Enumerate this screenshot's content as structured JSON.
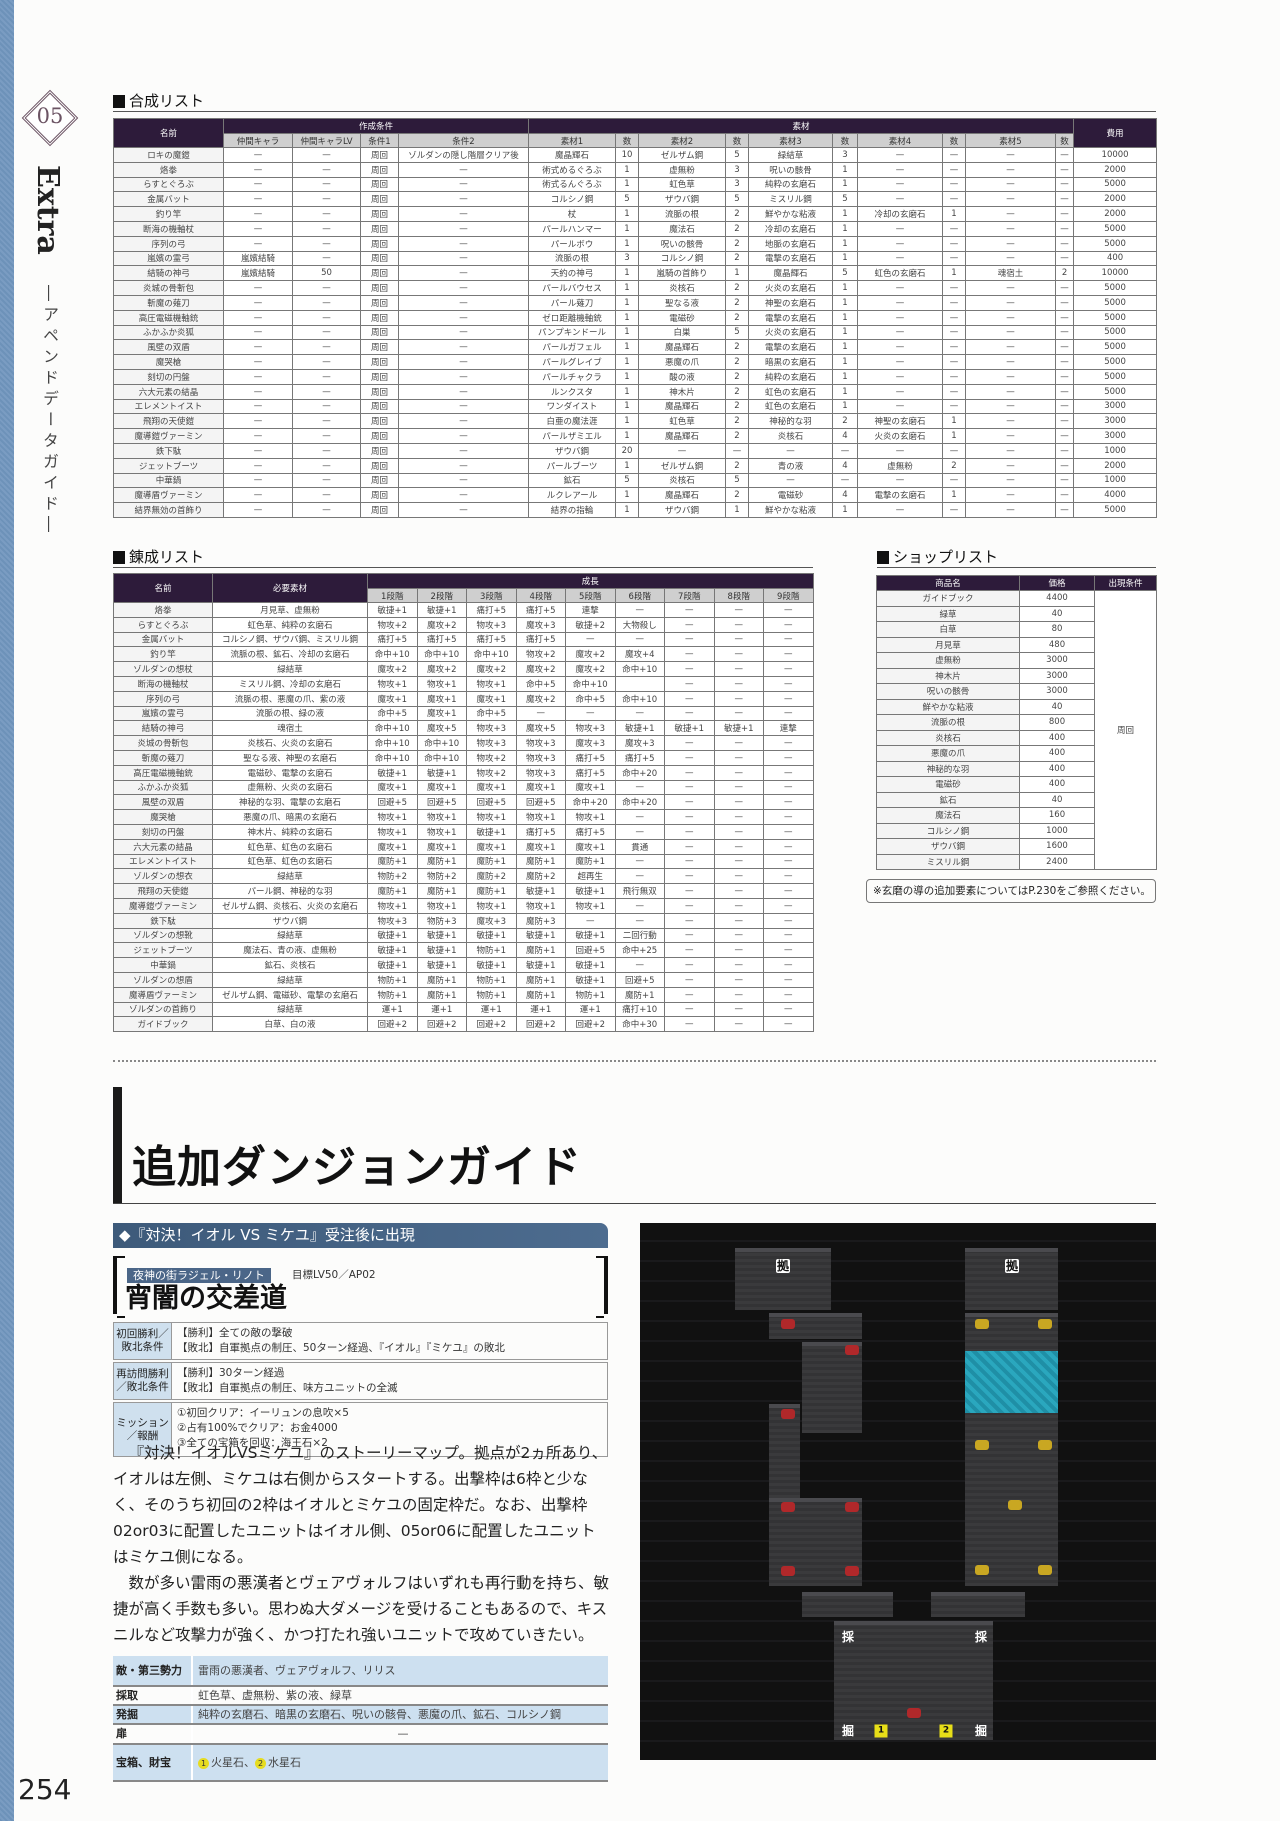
{
  "sidebar": {
    "chapter_number": "05",
    "chapter_title": "Extra",
    "subtitle": "―アペンドデータガイド―",
    "page_number": "254"
  },
  "synthesis": {
    "title": "合成リスト",
    "headers": {
      "name": "名前",
      "conditions": "作成条件",
      "materials": "素材",
      "cost": "費用"
    },
    "columns": [
      "仲間キャラ",
      "仲間キャラLV",
      "条件1",
      "条件2",
      "素材1",
      "数",
      "素材2",
      "数",
      "素材3",
      "数",
      "素材4",
      "数",
      "素材5",
      "数"
    ],
    "rows": [
      [
        "ロキの魔鎧",
        "—",
        "—",
        "周回",
        "ゾルダンの隠し階層クリア後",
        "魔晶輝石",
        "10",
        "ゼルザム鋼",
        "5",
        "緑結草",
        "3",
        "—",
        "—",
        "—",
        "—",
        "10000"
      ],
      [
        "烙拳",
        "—",
        "—",
        "周回",
        "—",
        "術式めるぐろぶ",
        "1",
        "虚無粉",
        "3",
        "呪いの骸骨",
        "1",
        "—",
        "—",
        "—",
        "—",
        "2000"
      ],
      [
        "らすとぐろぶ",
        "—",
        "—",
        "周回",
        "—",
        "術式るんぐろぶ",
        "1",
        "虹色草",
        "3",
        "純粋の玄磨石",
        "1",
        "—",
        "—",
        "—",
        "—",
        "5000"
      ],
      [
        "金属バット",
        "—",
        "—",
        "周回",
        "—",
        "コルシノ鋼",
        "5",
        "ザウバ鋼",
        "5",
        "ミスリル鋼",
        "5",
        "—",
        "—",
        "—",
        "—",
        "2000"
      ],
      [
        "釣り竿",
        "—",
        "—",
        "周回",
        "—",
        "杖",
        "1",
        "流脈の根",
        "2",
        "鮮やかな粘液",
        "1",
        "冷却の玄磨石",
        "1",
        "—",
        "—",
        "2000"
      ],
      [
        "断海の機軸杖",
        "—",
        "—",
        "周回",
        "—",
        "パールハンマー",
        "1",
        "魔法石",
        "2",
        "冷却の玄磨石",
        "1",
        "—",
        "—",
        "—",
        "—",
        "5000"
      ],
      [
        "序列の弓",
        "—",
        "—",
        "周回",
        "—",
        "パールボウ",
        "1",
        "呪いの骸骨",
        "2",
        "地脈の玄磨石",
        "1",
        "—",
        "—",
        "—",
        "—",
        "5000"
      ],
      [
        "嵐嬪の霊弓",
        "嵐嬪結騎",
        "—",
        "周回",
        "—",
        "流脈の根",
        "3",
        "コルシノ鋼",
        "2",
        "電撃の玄磨石",
        "1",
        "—",
        "—",
        "—",
        "—",
        "400"
      ],
      [
        "結騎の神弓",
        "嵐嬪結騎",
        "50",
        "周回",
        "—",
        "天約の神弓",
        "1",
        "嵐騎の首飾り",
        "1",
        "魔晶輝石",
        "5",
        "虹色の玄磨石",
        "1",
        "魂宿土",
        "2",
        "10000"
      ],
      [
        "炎城の骨斬包",
        "—",
        "—",
        "周回",
        "—",
        "パールバウセス",
        "1",
        "炎核石",
        "2",
        "火炎の玄磨石",
        "1",
        "—",
        "—",
        "—",
        "—",
        "5000"
      ],
      [
        "斬魔の薙刀",
        "—",
        "—",
        "周回",
        "—",
        "パール薙刀",
        "1",
        "聖なる液",
        "2",
        "神聖の玄磨石",
        "1",
        "—",
        "—",
        "—",
        "—",
        "5000"
      ],
      [
        "高圧電磁機軸銃",
        "—",
        "—",
        "周回",
        "—",
        "ゼロ距離機軸銃",
        "1",
        "電磁砂",
        "2",
        "電撃の玄磨石",
        "1",
        "—",
        "—",
        "—",
        "—",
        "5000"
      ],
      [
        "ふかふか炎狐",
        "—",
        "—",
        "周回",
        "—",
        "パンプキンドール",
        "1",
        "白巣",
        "5",
        "火炎の玄磨石",
        "1",
        "—",
        "—",
        "—",
        "—",
        "5000"
      ],
      [
        "風壁の双盾",
        "—",
        "—",
        "周回",
        "—",
        "パールガフェル",
        "1",
        "魔晶輝石",
        "2",
        "電撃の玄磨石",
        "1",
        "—",
        "—",
        "—",
        "—",
        "5000"
      ],
      [
        "魔哭槍",
        "—",
        "—",
        "周回",
        "—",
        "パールグレイブ",
        "1",
        "悪魔の爪",
        "2",
        "暗黒の玄磨石",
        "1",
        "—",
        "—",
        "—",
        "—",
        "5000"
      ],
      [
        "刻切の円盤",
        "—",
        "—",
        "周回",
        "—",
        "パールチャクラ",
        "1",
        "酸の液",
        "2",
        "純粋の玄磨石",
        "1",
        "—",
        "—",
        "—",
        "—",
        "5000"
      ],
      [
        "六大元素の結晶",
        "—",
        "—",
        "周回",
        "—",
        "ルンクスタ",
        "1",
        "神木片",
        "2",
        "虹色の玄磨石",
        "1",
        "—",
        "—",
        "—",
        "—",
        "5000"
      ],
      [
        "エレメントイスト",
        "—",
        "—",
        "周回",
        "—",
        "ワンダイスト",
        "1",
        "魔晶輝石",
        "2",
        "虹色の玄磨石",
        "1",
        "—",
        "—",
        "—",
        "—",
        "3000"
      ],
      [
        "飛翔の天使鎧",
        "—",
        "—",
        "周回",
        "—",
        "白亜の魔法涯",
        "1",
        "虹色草",
        "2",
        "神秘的な羽",
        "2",
        "神聖の玄磨石",
        "1",
        "—",
        "—",
        "3000"
      ],
      [
        "魔導鎧ヴァーミン",
        "—",
        "—",
        "周回",
        "—",
        "パールザミエル",
        "1",
        "魔晶輝石",
        "2",
        "炎核石",
        "4",
        "火炎の玄磨石",
        "1",
        "—",
        "—",
        "3000"
      ],
      [
        "鉄下駄",
        "—",
        "—",
        "周回",
        "—",
        "ザウバ鋼",
        "20",
        "—",
        "—",
        "—",
        "—",
        "—",
        "—",
        "—",
        "—",
        "1000"
      ],
      [
        "ジェットブーツ",
        "—",
        "—",
        "周回",
        "—",
        "パールブーツ",
        "1",
        "ゼルザム鋼",
        "2",
        "青の液",
        "4",
        "虚無粉",
        "2",
        "—",
        "—",
        "2000"
      ],
      [
        "中華鍋",
        "—",
        "—",
        "周回",
        "—",
        "鉱石",
        "5",
        "炎核石",
        "5",
        "—",
        "—",
        "—",
        "—",
        "—",
        "—",
        "1000"
      ],
      [
        "魔導盾ヴァーミン",
        "—",
        "—",
        "周回",
        "—",
        "ルクレアール",
        "1",
        "魔晶輝石",
        "2",
        "電磁砂",
        "4",
        "電撃の玄磨石",
        "1",
        "—",
        "—",
        "4000"
      ],
      [
        "結界無効の首飾り",
        "—",
        "—",
        "周回",
        "—",
        "結界の指輪",
        "1",
        "ザウバ鋼",
        "1",
        "鮮やかな粘液",
        "1",
        "—",
        "—",
        "—",
        "—",
        "5000"
      ]
    ]
  },
  "refinement": {
    "title": "錬成リスト",
    "headers": {
      "name": "名前",
      "materials": "必要素材",
      "growth": "成長"
    },
    "stages": [
      "1段階",
      "2段階",
      "3段階",
      "4段階",
      "5段階",
      "6段階",
      "7段階",
      "8段階",
      "9段階"
    ],
    "rows": [
      [
        "烙拳",
        "月見草、虚無粉",
        "敏捷+1",
        "敏捷+1",
        "痛打+5",
        "痛打+5",
        "連撃",
        "—",
        "—",
        "—",
        "—"
      ],
      [
        "らすとぐろぶ",
        "虹色草、純粋の玄磨石",
        "物攻+2",
        "魔攻+2",
        "物攻+3",
        "魔攻+3",
        "敏捷+2",
        "大物殺し",
        "—",
        "—",
        "—"
      ],
      [
        "金属バット",
        "コルシノ鋼、ザウバ鋼、ミスリル鋼",
        "痛打+5",
        "痛打+5",
        "痛打+5",
        "痛打+5",
        "—",
        "—",
        "—",
        "—",
        "—"
      ],
      [
        "釣り竿",
        "流脈の根、鉱石、冷却の玄磨石",
        "命中+10",
        "命中+10",
        "命中+10",
        "物攻+2",
        "魔攻+2",
        "魔攻+4",
        "—",
        "—",
        "—"
      ],
      [
        "ゾルダンの想杖",
        "緑結草",
        "魔攻+2",
        "魔攻+2",
        "魔攻+2",
        "魔攻+2",
        "魔攻+2",
        "命中+10",
        "—",
        "—",
        "—"
      ],
      [
        "断海の機軸杖",
        "ミスリル鋼、冷却の玄磨石",
        "物攻+1",
        "物攻+1",
        "物攻+1",
        "命中+5",
        "命中+10",
        "",
        "—",
        "—",
        "—"
      ],
      [
        "序列の弓",
        "流脈の根、悪魔の爪、紫の液",
        "魔攻+1",
        "魔攻+1",
        "魔攻+1",
        "魔攻+2",
        "命中+5",
        "命中+10",
        "—",
        "—",
        "—"
      ],
      [
        "嵐嬪の霊弓",
        "流脈の根、緑の液",
        "命中+5",
        "魔攻+1",
        "命中+5",
        "—",
        "—",
        "—",
        "—",
        "—",
        "—"
      ],
      [
        "結騎の神弓",
        "魂宿土",
        "命中+10",
        "魔攻+5",
        "物攻+3",
        "魔攻+5",
        "物攻+3",
        "敏捷+1",
        "敏捷+1",
        "敏捷+1",
        "連撃"
      ],
      [
        "炎城の骨斬包",
        "炎核石、火炎の玄磨石",
        "命中+10",
        "命中+10",
        "物攻+3",
        "物攻+3",
        "魔攻+3",
        "魔攻+3",
        "—",
        "—",
        "—"
      ],
      [
        "斬魔の薙刀",
        "聖なる液、神聖の玄磨石",
        "命中+10",
        "命中+10",
        "物攻+2",
        "物攻+3",
        "痛打+5",
        "痛打+5",
        "—",
        "—",
        "—"
      ],
      [
        "高圧電磁機軸銃",
        "電磁砂、電撃の玄磨石",
        "敏捷+1",
        "敏捷+1",
        "物攻+2",
        "物攻+3",
        "痛打+5",
        "命中+20",
        "—",
        "—",
        "—"
      ],
      [
        "ふかふか炎狐",
        "虚無粉、火炎の玄磨石",
        "魔攻+1",
        "魔攻+1",
        "魔攻+1",
        "魔攻+1",
        "魔攻+1",
        "—",
        "—",
        "—",
        "—"
      ],
      [
        "風壁の双盾",
        "神秘的な羽、電撃の玄磨石",
        "回避+5",
        "回避+5",
        "回避+5",
        "回避+5",
        "命中+20",
        "命中+20",
        "—",
        "—",
        "—"
      ],
      [
        "魔哭槍",
        "悪魔の爪、暗黒の玄磨石",
        "物攻+1",
        "物攻+1",
        "物攻+1",
        "物攻+1",
        "物攻+1",
        "—",
        "—",
        "—",
        "—"
      ],
      [
        "刻切の円盤",
        "神木片、純粋の玄磨石",
        "物攻+1",
        "物攻+1",
        "敏捷+1",
        "痛打+5",
        "痛打+5",
        "—",
        "—",
        "—",
        "—"
      ],
      [
        "六大元素の結晶",
        "虹色草、虹色の玄磨石",
        "魔攻+1",
        "魔攻+1",
        "魔攻+1",
        "魔攻+1",
        "魔攻+1",
        "貫通",
        "—",
        "—",
        "—"
      ],
      [
        "エレメントイスト",
        "虹色草、虹色の玄磨石",
        "魔防+1",
        "魔防+1",
        "魔防+1",
        "魔防+1",
        "魔防+1",
        "—",
        "—",
        "—",
        "—"
      ],
      [
        "ゾルダンの想衣",
        "緑結草",
        "物防+2",
        "物防+2",
        "魔防+2",
        "魔防+2",
        "超再生",
        "—",
        "—",
        "—",
        "—"
      ],
      [
        "飛翔の天使鎧",
        "パール鋼、神秘的な羽",
        "魔防+1",
        "魔防+1",
        "魔防+1",
        "敏捷+1",
        "敏捷+1",
        "飛行無双",
        "—",
        "—",
        "—"
      ],
      [
        "魔導鎧ヴァーミン",
        "ゼルザム鋼、炎核石、火炎の玄磨石",
        "物攻+1",
        "物攻+1",
        "物攻+1",
        "物攻+1",
        "物攻+1",
        "—",
        "—",
        "—",
        "—"
      ],
      [
        "鉄下駄",
        "ザウバ鋼",
        "物攻+3",
        "物防+3",
        "魔攻+3",
        "魔防+3",
        "—",
        "—",
        "—",
        "—",
        "—"
      ],
      [
        "ゾルダンの想靴",
        "緑結草",
        "敏捷+1",
        "敏捷+1",
        "敏捷+1",
        "敏捷+1",
        "敏捷+1",
        "二回行動",
        "—",
        "—",
        "—"
      ],
      [
        "ジェットブーツ",
        "魔法石、青の液、虚無粉",
        "敏捷+1",
        "敏捷+1",
        "物防+1",
        "魔防+1",
        "回避+5",
        "命中+25",
        "—",
        "—",
        "—"
      ],
      [
        "中華鍋",
        "鉱石、炎核石",
        "敏捷+1",
        "敏捷+1",
        "敏捷+1",
        "敏捷+1",
        "敏捷+1",
        "—",
        "—",
        "—",
        "—"
      ],
      [
        "ゾルダンの想盾",
        "緑結草",
        "物防+1",
        "魔防+1",
        "物防+1",
        "魔防+1",
        "敏捷+1",
        "回避+5",
        "—",
        "—",
        "—"
      ],
      [
        "魔導盾ヴァーミン",
        "ゼルザム鋼、電磁砂、電撃の玄磨石",
        "物防+1",
        "魔防+1",
        "物防+1",
        "魔防+1",
        "物防+1",
        "魔防+1",
        "—",
        "—",
        "—"
      ],
      [
        "ゾルダンの首飾り",
        "緑結草",
        "運+1",
        "運+1",
        "運+1",
        "運+1",
        "運+1",
        "痛打+10",
        "—",
        "—",
        "—"
      ],
      [
        "ガイドブック",
        "白草、白の液",
        "回避+2",
        "回避+2",
        "回避+2",
        "回避+2",
        "回避+2",
        "命中+30",
        "—",
        "—",
        "—"
      ]
    ]
  },
  "shop": {
    "title": "ショップリスト",
    "headers": [
      "商品名",
      "価格",
      "出現条件"
    ],
    "condition": "周回",
    "rows": [
      [
        "ガイドブック",
        "4400"
      ],
      [
        "緑草",
        "40"
      ],
      [
        "白草",
        "80"
      ],
      [
        "月見草",
        "480"
      ],
      [
        "虚無粉",
        "3000"
      ],
      [
        "神木片",
        "3000"
      ],
      [
        "呪いの骸骨",
        "3000"
      ],
      [
        "鮮やかな粘液",
        "40"
      ],
      [
        "流脈の根",
        "800"
      ],
      [
        "炎核石",
        "400"
      ],
      [
        "悪魔の爪",
        "400"
      ],
      [
        "神秘的な羽",
        "400"
      ],
      [
        "電磁砂",
        "400"
      ],
      [
        "鉱石",
        "40"
      ],
      [
        "魔法石",
        "160"
      ],
      [
        "コルシノ鋼",
        "1000"
      ],
      [
        "ザウバ鋼",
        "1600"
      ],
      [
        "ミスリル鋼",
        "2400"
      ]
    ],
    "note": "※玄磨の導の追加要素についてはP.230をご参照ください。"
  },
  "dungeon": {
    "section_title": "追加ダンジョンガイド",
    "banner": "◆『対決！イオル VS ミケユ』受注後に出現",
    "area": "夜神の街ラジェル・リノト",
    "goal": "目標LV50／AP02",
    "stage_name": "宵闇の交差道",
    "conditions": [
      {
        "label": "初回勝利／敗北条件",
        "lines": [
          "【勝利】全ての敵の撃破",
          "【敗北】自軍拠点の制圧、50ターン経過、『イオル』『ミケユ』の敗北"
        ]
      },
      {
        "label": "再訪問勝利／敗北条件",
        "lines": [
          "【勝利】30ターン経過",
          "【敗北】自軍拠点の制圧、味方ユニットの全滅"
        ]
      },
      {
        "label": "ミッション／報酬",
        "lines": [
          "①初回クリア：イーリュンの息吹×5",
          "②占有100%でクリア：お金4000",
          "③全ての宝箱を回収：海王石×2"
        ]
      }
    ],
    "paragraphs": [
      "『対決！イオルVSミケユ』のストーリーマップ。拠点が2ヵ所あり、イオルは左側、ミケユは右側からスタートする。出撃枠は6枠と少なく、そのうち初回の2枠はイオルとミケユの固定枠だ。なお、出撃枠02or03に配置したユニットはイオル側、05or06に配置したユニットはミケユ側になる。",
      "数が多い雷雨の悪漢者とヴェアヴォルフはいずれも再行動を持ち、敏捷が高く手数も多い。思わぬ大ダメージを受けることもあるので、キスニルなど攻撃力が強く、かつ打たれ強いユニットで攻めていきたい。"
    ],
    "info": [
      {
        "label": "敵・第三勢力",
        "value": "雷雨の悪漢者、ヴェアヴォルフ、リリス"
      },
      {
        "label": "採取",
        "value": "虹色草、虚無粉、紫の液、緑草"
      },
      {
        "label": "発掘",
        "value": "純粋の玄磨石、暗黒の玄磨石、呪いの骸骨、悪魔の爪、鉱石、コルシノ鋼"
      },
      {
        "label": "扉",
        "value": "—"
      },
      {
        "label": "宝箱、財宝",
        "treasures": [
          {
            "num": "1",
            "item": "火星石"
          },
          {
            "num": "2",
            "item": "水星石"
          }
        ],
        "separator": "、"
      }
    ],
    "map": {
      "base_label": "拠",
      "gather_label": "採",
      "dig_label": "掘",
      "chest_1": "1",
      "chest_2": "2",
      "water_color": "#2aa7be"
    }
  }
}
